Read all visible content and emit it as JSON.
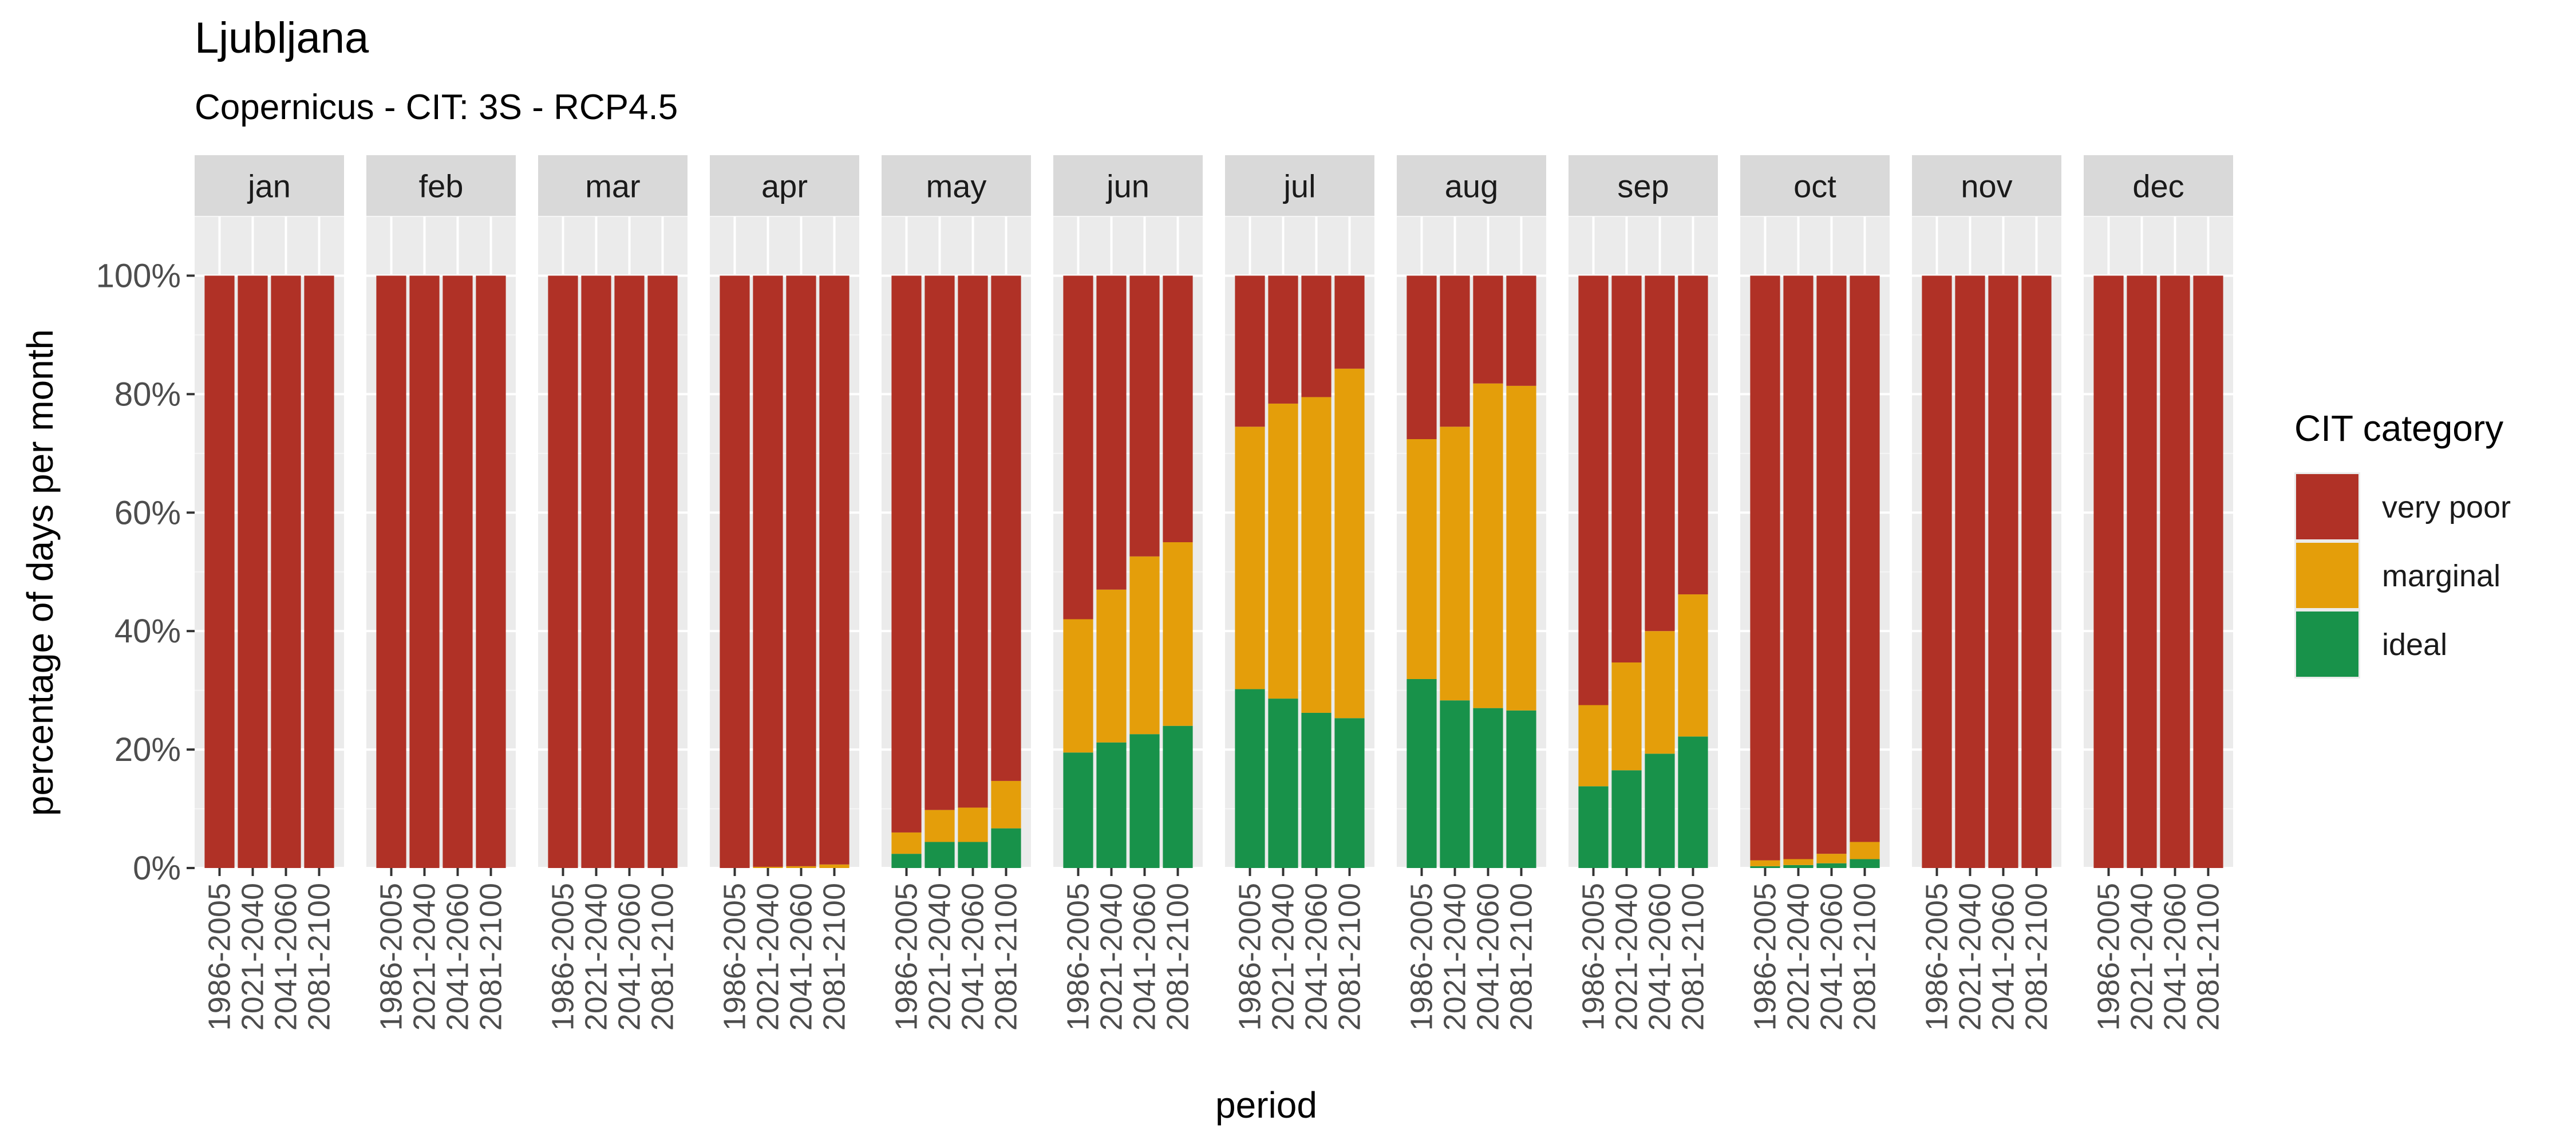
{
  "chart_data": {
    "type": "bar",
    "stacked": true,
    "percent_axis": true,
    "title": "Ljubljana",
    "subtitle": "Copernicus - CIT: 3S - RCP4.5",
    "xlabel": "period",
    "ylabel": "percentage of days per month",
    "ylim": [
      0,
      100
    ],
    "ylim_display": [
      0,
      110
    ],
    "y_ticks": [
      0,
      20,
      40,
      60,
      80,
      100
    ],
    "y_tick_labels": [
      "0%",
      "20%",
      "40%",
      "60%",
      "80%",
      "100%"
    ],
    "grid": true,
    "legend_title": "CIT category",
    "legend_position": "right",
    "categories": [
      "1986-2005",
      "2021-2040",
      "2041-2060",
      "2081-2100"
    ],
    "facets": [
      "jan",
      "feb",
      "mar",
      "apr",
      "may",
      "jun",
      "jul",
      "aug",
      "sep",
      "oct",
      "nov",
      "dec"
    ],
    "series": [
      {
        "name": "ideal",
        "color": "#18924a",
        "values": [
          [
            0,
            0,
            0,
            0
          ],
          [
            0,
            0,
            0,
            0
          ],
          [
            0,
            0,
            0,
            0
          ],
          [
            0,
            0,
            0,
            0
          ],
          [
            2.4,
            4.4,
            4.4,
            6.7
          ],
          [
            19.5,
            21.2,
            22.6,
            24.0
          ],
          [
            30.2,
            28.6,
            26.2,
            25.3
          ],
          [
            31.9,
            28.3,
            27.0,
            26.6
          ],
          [
            13.8,
            16.5,
            19.3,
            22.2
          ],
          [
            0.3,
            0.5,
            0.8,
            1.5
          ],
          [
            0,
            0,
            0,
            0
          ],
          [
            0,
            0,
            0,
            0
          ]
        ]
      },
      {
        "name": "marginal",
        "color": "#e49e0a",
        "values": [
          [
            0,
            0,
            0,
            0
          ],
          [
            0,
            0,
            0,
            0
          ],
          [
            0,
            0,
            0,
            0
          ],
          [
            0,
            0.2,
            0.3,
            0.6
          ],
          [
            3.6,
            5.4,
            5.8,
            8.0
          ],
          [
            22.5,
            25.8,
            30.0,
            31.0
          ],
          [
            44.3,
            49.8,
            53.3,
            59.0
          ],
          [
            40.5,
            46.2,
            54.8,
            54.8
          ],
          [
            13.7,
            18.2,
            20.7,
            24.0
          ],
          [
            1.0,
            1.0,
            1.6,
            2.9
          ],
          [
            0,
            0,
            0,
            0
          ],
          [
            0,
            0,
            0,
            0
          ]
        ]
      },
      {
        "name": "very poor",
        "color": "#b03126",
        "values": [
          [
            100,
            100,
            100,
            100
          ],
          [
            100,
            100,
            100,
            100
          ],
          [
            100,
            100,
            100,
            100
          ],
          [
            100,
            99.8,
            99.7,
            99.4
          ],
          [
            94.0,
            90.2,
            89.8,
            85.3
          ],
          [
            58.0,
            53.0,
            47.4,
            45.0
          ],
          [
            25.5,
            21.6,
            20.5,
            15.7
          ],
          [
            27.6,
            25.5,
            18.2,
            18.6
          ],
          [
            72.5,
            65.3,
            60.0,
            53.8
          ],
          [
            98.7,
            98.5,
            97.6,
            95.6
          ],
          [
            100,
            100,
            100,
            100
          ],
          [
            100,
            100,
            100,
            100
          ]
        ]
      }
    ],
    "legend_order": [
      "very poor",
      "marginal",
      "ideal"
    ]
  },
  "colors": {
    "panel_background": "#ebebeb",
    "strip_background": "#d9d9d9",
    "grid_major": "#ffffff",
    "grid_minor": "#f5f5f5",
    "text": "#1a1a1a",
    "axis_text": "#4d4d4d"
  }
}
